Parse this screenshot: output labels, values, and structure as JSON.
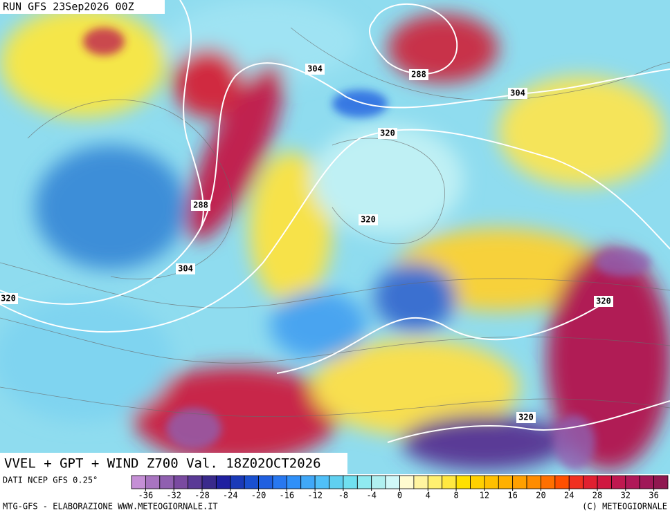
{
  "header": {
    "run": "RUN GFS 23Sep2026 00Z",
    "title": "VVEL + GPT + WIND Z700 Val. 18Z02OCT2026"
  },
  "footer": {
    "source": "DATI NCEP GFS 0.25°",
    "credit_left": "MTG-GFS - ELABORAZIONE WWW.METEOGIORNALE.IT",
    "credit_right": "(C) METEOGIORNALE"
  },
  "contour_labels": [
    304,
    288,
    304,
    320,
    288,
    320,
    304,
    320,
    320,
    320
  ],
  "colorbar": {
    "range": [
      -38,
      38
    ],
    "ticks": [
      -36,
      -32,
      -28,
      -24,
      -20,
      -16,
      -12,
      -8,
      -4,
      0,
      4,
      8,
      12,
      16,
      20,
      24,
      28,
      32,
      36
    ],
    "colors": [
      "#c58fd6",
      "#a874c0",
      "#9060b0",
      "#7a4aa0",
      "#5a3a96",
      "#3a2a8c",
      "#2020a0",
      "#1a3ab8",
      "#1a50d0",
      "#2060e0",
      "#2878f0",
      "#3090f8",
      "#40a8f8",
      "#50c0f8",
      "#60d0f0",
      "#70e0f0",
      "#90eaf0",
      "#b0f0f0",
      "#d0f8f8",
      "#fffbd0",
      "#fff4a0",
      "#fff070",
      "#ffe840",
      "#ffe000",
      "#ffd000",
      "#ffc000",
      "#ffb000",
      "#ffa000",
      "#ff8c00",
      "#ff7000",
      "#ff5000",
      "#f03020",
      "#e02030",
      "#d01840",
      "#c01850",
      "#b01858",
      "#a01858",
      "#901850"
    ]
  }
}
